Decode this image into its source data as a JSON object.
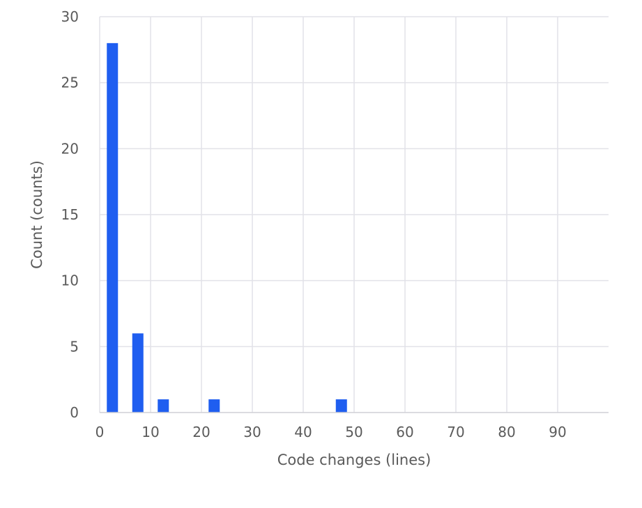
{
  "chart_data": {
    "type": "bar",
    "title": "",
    "xlabel": "Code changes (lines)",
    "ylabel": "Count (counts)",
    "xlim": [
      0,
      100
    ],
    "ylim": [
      0,
      30
    ],
    "x_ticks": [
      0,
      10,
      20,
      30,
      40,
      50,
      60,
      70,
      80,
      90
    ],
    "y_ticks": [
      0,
      5,
      10,
      15,
      20,
      25,
      30
    ],
    "grid": true,
    "bar_color": "#1f5ef0",
    "bars": [
      {
        "x": 2.5,
        "value": 28
      },
      {
        "x": 7.5,
        "value": 6
      },
      {
        "x": 12.5,
        "value": 1
      },
      {
        "x": 22.5,
        "value": 1
      },
      {
        "x": 47.5,
        "value": 1
      }
    ]
  }
}
